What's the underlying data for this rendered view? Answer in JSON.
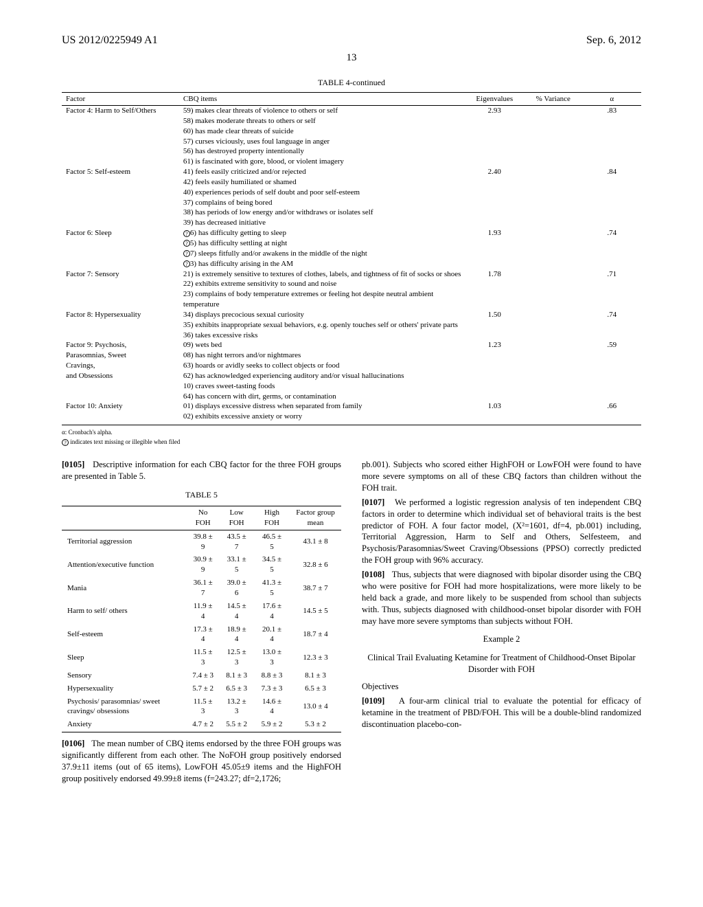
{
  "header": {
    "pub_number": "US 2012/0225949 A1",
    "pub_date": "Sep. 6, 2012",
    "page_number": "13"
  },
  "table4": {
    "caption": "TABLE 4-continued",
    "columns": [
      "Factor",
      "CBQ items",
      "Eigenvalues",
      "% Variance",
      "α"
    ],
    "rows": [
      {
        "factor": "Factor 4: Harm to Self/Others",
        "eigen": "2.93",
        "var": "",
        "alpha": ".83",
        "items": [
          "59) makes clear threats of violence to others or self",
          "58) makes moderate threats to others or self",
          "60) has made clear threats of suicide",
          "57) curses viciously, uses foul language in anger",
          "56) has destroyed property intentionally",
          "61) is fascinated with gore, blood, or violent imagery"
        ]
      },
      {
        "factor": "Factor 5: Self-esteem",
        "eigen": "2.40",
        "var": "",
        "alpha": ".84",
        "items": [
          "41) feels easily criticized and/or rejected",
          "42) feels easily humiliated or shamed",
          "40) experiences periods of self doubt and poor self-esteem",
          "37) complains of being bored",
          "38) has periods of low energy and/or withdraws or isolates self",
          "39) has decreased initiative"
        ]
      },
      {
        "factor": "Factor 6: Sleep",
        "eigen": "1.93",
        "var": "",
        "alpha": ".74",
        "items": [
          "6) has difficulty getting to sleep",
          "5) has difficulty settling at night",
          "7) sleeps fitfully and/or awakens in the middle of the night",
          "3) has difficulty arising in the AM"
        ],
        "circled": true
      },
      {
        "factor": "Factor 7: Sensory",
        "eigen": "1.78",
        "var": "",
        "alpha": ".71",
        "items": [
          "21) is extremely sensitive to textures of clothes, labels, and tightness of fit of socks or shoes",
          "22) exhibits extreme sensitivity to sound and noise",
          "23) complains of body temperature extremes or feeling hot despite neutral ambient temperature"
        ]
      },
      {
        "factor": "Factor 8: Hypersexuality",
        "eigen": "1.50",
        "var": "",
        "alpha": ".74",
        "items": [
          "34) displays precocious sexual curiosity",
          "35) exhibits inappropriate sexual behaviors, e.g. openly touches self or others' private parts",
          "36) takes excessive risks"
        ]
      },
      {
        "factor": "Factor 9: Psychosis, Parasomnias, Sweet Cravings, and Obsessions",
        "eigen": "1.23",
        "var": "",
        "alpha": ".59",
        "items": [
          "09) wets bed",
          "08) has night terrors and/or nightmares",
          "63) hoards or avidly seeks to collect objects or food",
          "62) has acknowledged experiencing auditory and/or visual hallucinations",
          "10) craves sweet-tasting foods",
          "64) has concern with dirt, germs, or contamination"
        ]
      },
      {
        "factor": "Factor 10: Anxiety",
        "eigen": "1.03",
        "var": "",
        "alpha": ".66",
        "items": [
          "01) displays excessive distress when separated from family",
          "02) exhibits excessive anxiety or worry"
        ]
      }
    ],
    "footnote_alpha": "α: Cronbach's alpha.",
    "footnote_circled": " indicates text missing or illegible when filed"
  },
  "paragraphs": {
    "p0105_num": "[0105]",
    "p0105": "Descriptive information for each CBQ factor for the three FOH groups are presented in Table 5.",
    "p0106_num": "[0106]",
    "p0106": "The mean number of CBQ items endorsed by the three FOH groups was significantly different from each other. The NoFOH group positively endorsed 37.9±11 items (out of 65 items), LowFOH 45.05±9 items and the HighFOH group positively endorsed 49.99±8 items (f=243.27; df=2,1726;",
    "p0106b": "pb.001). Subjects who scored either HighFOH or LowFOH were found to have more severe symptoms on all of these CBQ factors than children without the FOH trait.",
    "p0107_num": "[0107]",
    "p0107": "We performed a logistic regression analysis of ten independent CBQ factors in order to determine which individual set of behavioral traits is the best predictor of FOH. A four factor model, (X²=1601, df=4, pb.001) including, Territorial Aggression, Harm to Self and Others, Selfesteem, and Psychosis/Parasomnias/Sweet Craving/Obsessions (PPSO) correctly predicted the FOH group with 96% accuracy.",
    "p0108_num": "[0108]",
    "p0108": "Thus, subjects that were diagnosed with bipolar disorder using the CBQ who were positive for FOH had more hospitalizations, were more likely to be held back a grade, and more likely to be suspended from school than subjects with. Thus, subjects diagnosed with childhood-onset bipolar disorder with FOH may have more severe symptoms than subjects without FOH.",
    "example2": "Example 2",
    "example2_title": "Clinical Trail Evaluating Ketamine for Treatment of Childhood-Onset Bipolar Disorder with FOH",
    "objectives": "Objectives",
    "p0109_num": "[0109]",
    "p0109": "A four-arm clinical trial to evaluate the potential for efficacy of ketamine in the treatment of PBD/FOH. This will be a double-blind randomized discontinuation placebo-con-"
  },
  "table5": {
    "caption": "TABLE 5",
    "columns": [
      "",
      "No FOH",
      "Low FOH",
      "High FOH",
      "Factor group mean"
    ],
    "rows": [
      [
        "Territorial aggression",
        "39.8 ± 9",
        "43.5 ± 7",
        "46.5 ± 5",
        "43.1 ± 8"
      ],
      [
        "Attention/executive function",
        "30.9 ± 9",
        "33.1 ± 5",
        "34.5 ± 5",
        "32.8 ± 6"
      ],
      [
        "Mania",
        "36.1 ± 7",
        "39.0 ± 6",
        "41.3 ± 5",
        "38.7 ± 7"
      ],
      [
        "Harm to self/ others",
        "11.9 ± 4",
        "14.5 ± 4",
        "17.6 ± 4",
        "14.5 ± 5"
      ],
      [
        "Self-esteem",
        "17.3 ± 4",
        "18.9 ± 4",
        "20.1 ± 4",
        "18.7 ± 4"
      ],
      [
        "Sleep",
        "11.5 ± 3",
        "12.5 ± 3",
        "13.0 ± 3",
        "12.3 ± 3"
      ],
      [
        "Sensory",
        "7.4 ± 3",
        "8.1 ± 3",
        "8.8 ± 3",
        "8.1 ± 3"
      ],
      [
        "Hypersexuality",
        "5.7 ± 2",
        "6.5 ± 3",
        "7.3 ± 3",
        "6.5 ± 3"
      ],
      [
        "Psychosis/ parasomnias/ sweet cravings/ obsessions",
        "11.5 ± 3",
        "13.2 ± 3",
        "14.6 ± 4",
        "13.0 ± 4"
      ],
      [
        "Anxiety",
        "4.7 ± 2",
        "5.5 ± 2",
        "5.9 ± 2",
        "5.3 ± 2"
      ]
    ]
  }
}
